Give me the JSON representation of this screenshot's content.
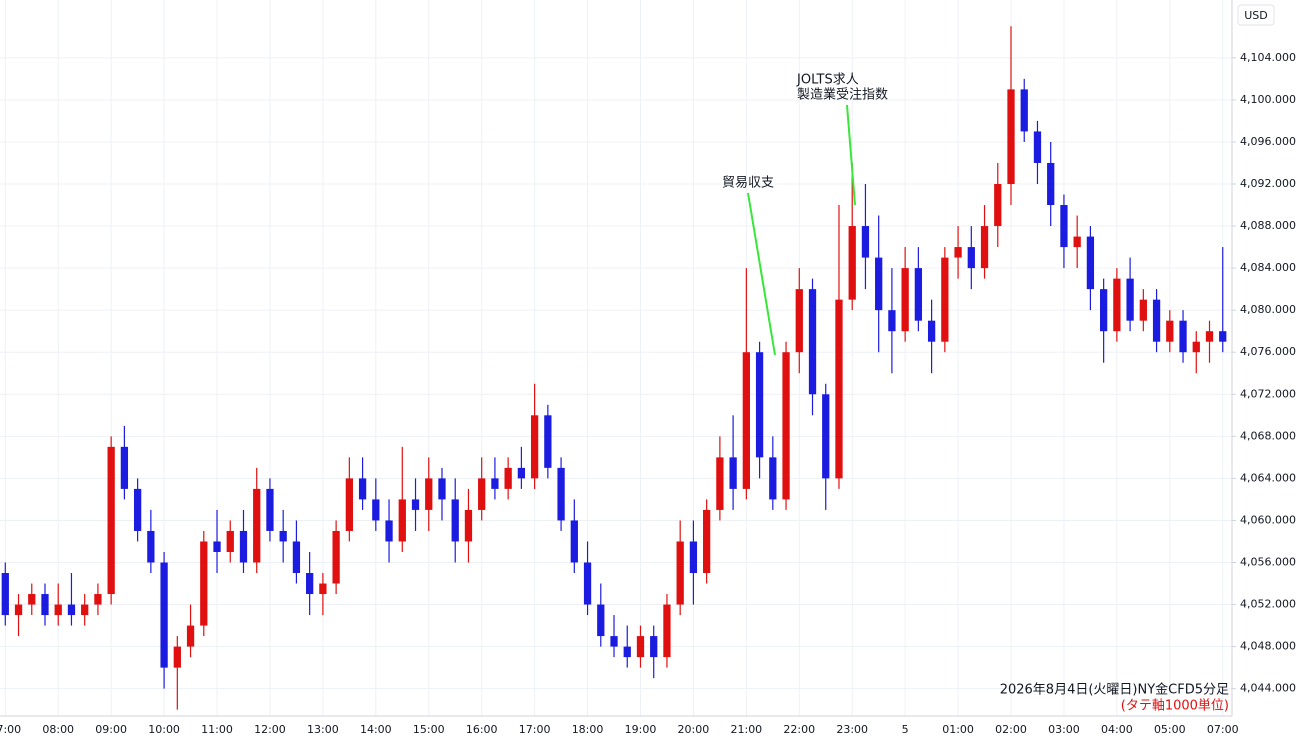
{
  "chart_data": {
    "type": "candlestick",
    "currency": "USD",
    "up_color": "#e01010",
    "down_color": "#1c1ce0",
    "grid": true,
    "ylim": [
      4041.4,
      4109.5
    ],
    "xlim": [
      -0.4,
      92.7
    ],
    "yticks": [
      {
        "value": 4044,
        "label": "4,044.000"
      },
      {
        "value": 4048,
        "label": "4,048.000"
      },
      {
        "value": 4052,
        "label": "4,052.000"
      },
      {
        "value": 4056,
        "label": "4,056.000"
      },
      {
        "value": 4060,
        "label": "4,060.000"
      },
      {
        "value": 4064,
        "label": "4,064.000"
      },
      {
        "value": 4068,
        "label": "4,068.000"
      },
      {
        "value": 4072,
        "label": "4,072.000"
      },
      {
        "value": 4076,
        "label": "4,076.000"
      },
      {
        "value": 4080,
        "label": "4,080.000"
      },
      {
        "value": 4084,
        "label": "4,084.000"
      },
      {
        "value": 4088,
        "label": "4,088.000"
      },
      {
        "value": 4092,
        "label": "4,092.000"
      },
      {
        "value": 4096,
        "label": "4,096.000"
      },
      {
        "value": 4100,
        "label": "4,100.000"
      },
      {
        "value": 4104,
        "label": "4,104.000"
      }
    ],
    "xticks": [
      {
        "value": 0,
        "label": "07:00"
      },
      {
        "value": 4,
        "label": "08:00"
      },
      {
        "value": 8,
        "label": "09:00"
      },
      {
        "value": 12,
        "label": "10:00"
      },
      {
        "value": 16,
        "label": "11:00"
      },
      {
        "value": 20,
        "label": "12:00"
      },
      {
        "value": 24,
        "label": "13:00"
      },
      {
        "value": 28,
        "label": "14:00"
      },
      {
        "value": 32,
        "label": "15:00"
      },
      {
        "value": 36,
        "label": "16:00"
      },
      {
        "value": 40,
        "label": "17:00"
      },
      {
        "value": 44,
        "label": "18:00"
      },
      {
        "value": 48,
        "label": "19:00"
      },
      {
        "value": 52,
        "label": "20:00"
      },
      {
        "value": 56,
        "label": "21:00"
      },
      {
        "value": 60,
        "label": "22:00"
      },
      {
        "value": 64,
        "label": "23:00"
      },
      {
        "value": 68,
        "label": "5"
      },
      {
        "value": 72,
        "label": "01:00"
      },
      {
        "value": 76,
        "label": "02:00"
      },
      {
        "value": 80,
        "label": "03:00"
      },
      {
        "value": 84,
        "label": "04:00"
      },
      {
        "value": 88,
        "label": "05:00"
      },
      {
        "value": 92,
        "label": "07:00"
      }
    ],
    "open": [
      4055,
      4051,
      4052,
      4053,
      4051,
      4052,
      4051,
      4052,
      4053,
      4067,
      4063,
      4059,
      4056,
      4046,
      4048,
      4050,
      4058,
      4057,
      4059,
      4056,
      4063,
      4059,
      4058,
      4055,
      4053,
      4054,
      4059,
      4064,
      4062,
      4060,
      4058,
      4062,
      4061,
      4064,
      4062,
      4058,
      4061,
      4064,
      4063,
      4065,
      4064,
      4070,
      4065,
      4060,
      4056,
      4052,
      4049,
      4048,
      4047,
      4049,
      4047,
      4052,
      4058,
      4055,
      4061,
      4066,
      4063,
      4076,
      4066,
      4062,
      4076,
      4082,
      4072,
      4064,
      4081,
      4088,
      4085,
      4080,
      4078,
      4084,
      4079,
      4077,
      4085,
      4086,
      4084,
      4088,
      4092,
      4101,
      4097,
      4094,
      4090,
      4086,
      4087,
      4082,
      4078,
      4083,
      4079,
      4081,
      4077,
      4079,
      4076,
      4077,
      4078
    ],
    "high": [
      4056,
      4053,
      4054,
      4054,
      4054,
      4055,
      4053,
      4054,
      4068,
      4069,
      4064,
      4061,
      4057,
      4049,
      4052,
      4059,
      4061,
      4060,
      4061,
      4065,
      4064,
      4061,
      4060,
      4057,
      4055,
      4060,
      4066,
      4066,
      4064,
      4062,
      4067,
      4064,
      4066,
      4065,
      4064,
      4063,
      4066,
      4066,
      4066,
      4067,
      4073,
      4071,
      4066,
      4062,
      4058,
      4054,
      4051,
      4050,
      4050,
      4050,
      4053,
      4060,
      4060,
      4062,
      4068,
      4070,
      4084,
      4077,
      4068,
      4077,
      4084,
      4083,
      4073,
      4090,
      4094,
      4092,
      4089,
      4084,
      4086,
      4086,
      4081,
      4086,
      4088,
      4088,
      4090,
      4094,
      4107,
      4102,
      4098,
      4096,
      4091,
      4089,
      4088,
      4083,
      4084,
      4085,
      4082,
      4082,
      4080,
      4080,
      4078,
      4079,
      4086
    ],
    "low": [
      4050,
      4049,
      4051,
      4050,
      4050,
      4050,
      4050,
      4051,
      4052,
      4062,
      4058,
      4055,
      4044,
      4042,
      4047,
      4049,
      4055,
      4056,
      4055,
      4055,
      4058,
      4056,
      4054,
      4051,
      4051,
      4053,
      4058,
      4061,
      4059,
      4056,
      4057,
      4059,
      4059,
      4060,
      4056,
      4056,
      4060,
      4062,
      4062,
      4063,
      4063,
      4064,
      4059,
      4055,
      4051,
      4048,
      4047,
      4046,
      4046,
      4045,
      4046,
      4051,
      4052,
      4054,
      4060,
      4061,
      4062,
      4064,
      4061,
      4061,
      4074,
      4070,
      4061,
      4063,
      4080,
      4082,
      4076,
      4074,
      4077,
      4078,
      4074,
      4076,
      4083,
      4082,
      4083,
      4086,
      4090,
      4096,
      4092,
      4088,
      4084,
      4084,
      4080,
      4075,
      4077,
      4078,
      4078,
      4076,
      4076,
      4075,
      4074,
      4075,
      4076
    ],
    "close": [
      4051,
      4052,
      4053,
      4051,
      4052,
      4051,
      4052,
      4053,
      4067,
      4063,
      4059,
      4056,
      4046,
      4048,
      4050,
      4058,
      4057,
      4059,
      4056,
      4063,
      4059,
      4058,
      4055,
      4053,
      4054,
      4059,
      4064,
      4062,
      4060,
      4058,
      4062,
      4061,
      4064,
      4062,
      4058,
      4061,
      4064,
      4063,
      4065,
      4064,
      4070,
      4065,
      4060,
      4056,
      4052,
      4049,
      4048,
      4047,
      4049,
      4047,
      4052,
      4058,
      4055,
      4061,
      4066,
      4063,
      4076,
      4066,
      4062,
      4076,
      4082,
      4072,
      4064,
      4081,
      4088,
      4085,
      4080,
      4078,
      4084,
      4079,
      4077,
      4085,
      4086,
      4084,
      4088,
      4092,
      4101,
      4097,
      4094,
      4090,
      4086,
      4087,
      4082,
      4078,
      4083,
      4079,
      4081,
      4077,
      4079,
      4076,
      4077,
      4078,
      4077
    ],
    "annotations": [
      {
        "lines": [
          "貿易収支"
        ]
      },
      {
        "lines": [
          "JOLTS求人",
          "製造業受注指数"
        ]
      }
    ],
    "footnote": "2026年8月4日(火曜日)NY金CFD5分足",
    "footnote_unit": "(タテ軸1000単位)"
  }
}
